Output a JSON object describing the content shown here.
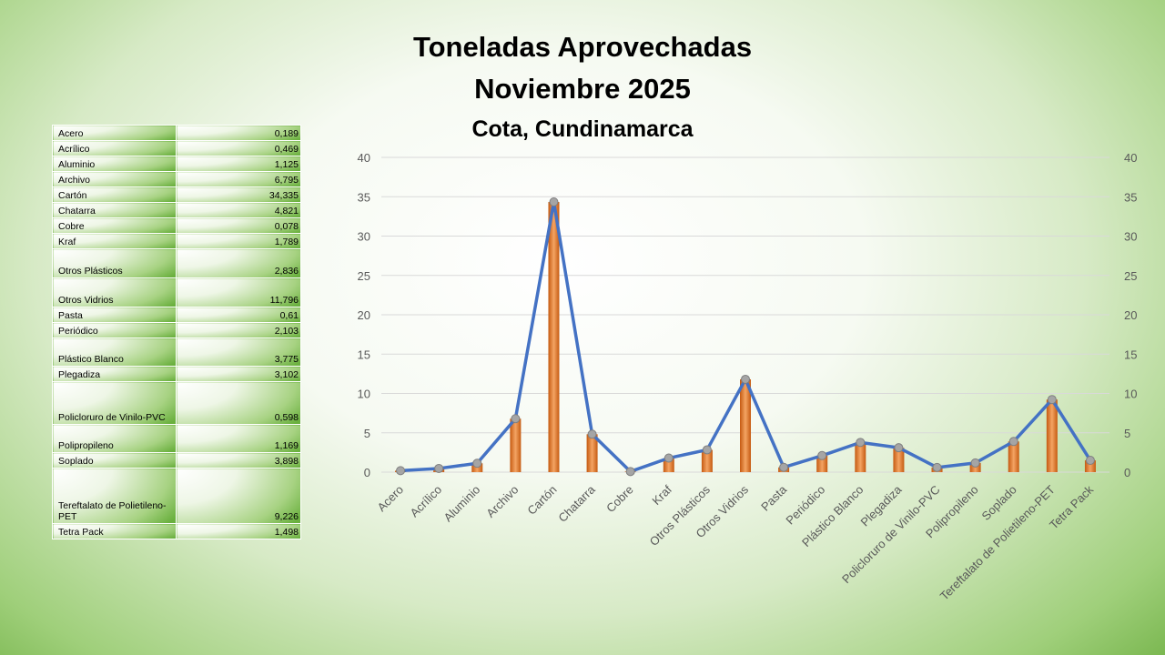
{
  "title_line1": "Toneladas Aprovechadas",
  "title_line2": "Noviembre 2025",
  "subtitle": "Cota, Cundinamarca",
  "table": [
    {
      "label": "Acero",
      "value": "0,189"
    },
    {
      "label": "Acrílico",
      "value": "0,469"
    },
    {
      "label": "Aluminio",
      "value": "1,125"
    },
    {
      "label": "Archivo",
      "value": "6,795"
    },
    {
      "label": "Cartón",
      "value": "34,335"
    },
    {
      "label": "Chatarra",
      "value": "4,821"
    },
    {
      "label": "Cobre",
      "value": "0,078"
    },
    {
      "label": "Kraf",
      "value": "1,789"
    },
    {
      "label": "Otros Plásticos",
      "value": "2,836"
    },
    {
      "label": "Otros Vidrios",
      "value": "11,796"
    },
    {
      "label": "Pasta",
      "value": "0,61"
    },
    {
      "label": "Periódico",
      "value": "2,103"
    },
    {
      "label": "Plástico Blanco",
      "value": "3,775"
    },
    {
      "label": "Plegadiza",
      "value": "3,102"
    },
    {
      "label": "Policloruro de Vinilo-PVC",
      "value": "0,598"
    },
    {
      "label": "Polipropileno",
      "value": "1,169"
    },
    {
      "label": "Soplado",
      "value": "3,898"
    },
    {
      "label": "Tereftalato de Polietileno-PET",
      "value": "9,226"
    },
    {
      "label": "Tetra Pack",
      "value": "1,498"
    }
  ],
  "chart_data": {
    "type": "bar+line",
    "categories": [
      "Acero",
      "Acrílico",
      "Aluminio",
      "Archivo",
      "Cartón",
      "Chatarra",
      "Cobre",
      "Kraf",
      "Otros Plásticos",
      "Otros Vidrios",
      "Pasta",
      "Periódico",
      "Plástico Blanco",
      "Plegadiza",
      "Policloruro de Vinilo-PVC",
      "Polipropileno",
      "Soplado",
      "Tereftalato de Polietileno-PET",
      "Tetra Pack"
    ],
    "values": [
      0.189,
      0.469,
      1.125,
      6.795,
      34.335,
      4.821,
      0.078,
      1.789,
      2.836,
      11.796,
      0.61,
      2.103,
      3.775,
      3.102,
      0.598,
      1.169,
      3.898,
      9.226,
      1.498
    ],
    "ylim": [
      0,
      40
    ],
    "yticks": [
      0,
      5,
      10,
      15,
      20,
      25,
      30,
      35,
      40
    ],
    "secondary_axis": true,
    "grid": true,
    "colors": {
      "bar": "#ed7d31",
      "line": "#4472c4",
      "marker": "#a5a5a5"
    }
  }
}
